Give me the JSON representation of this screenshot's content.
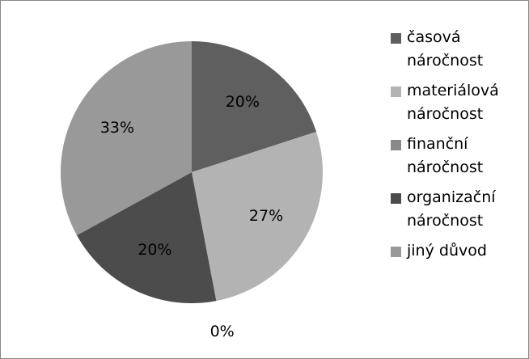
{
  "chart_data": {
    "type": "pie",
    "categories": [
      "časová náročnost",
      "materiálová náročnost",
      "finanční náročnost",
      "organizační náročnost",
      "jiný důvod"
    ],
    "values": [
      20,
      27,
      0,
      20,
      33
    ],
    "value_labels": [
      "20%",
      "27%",
      "0%",
      "20%",
      "33%"
    ],
    "colors": [
      "#5f5f5f",
      "#b3b3b3",
      "#8a8a8a",
      "#4c4c4c",
      "#999999"
    ],
    "legend": "right"
  }
}
